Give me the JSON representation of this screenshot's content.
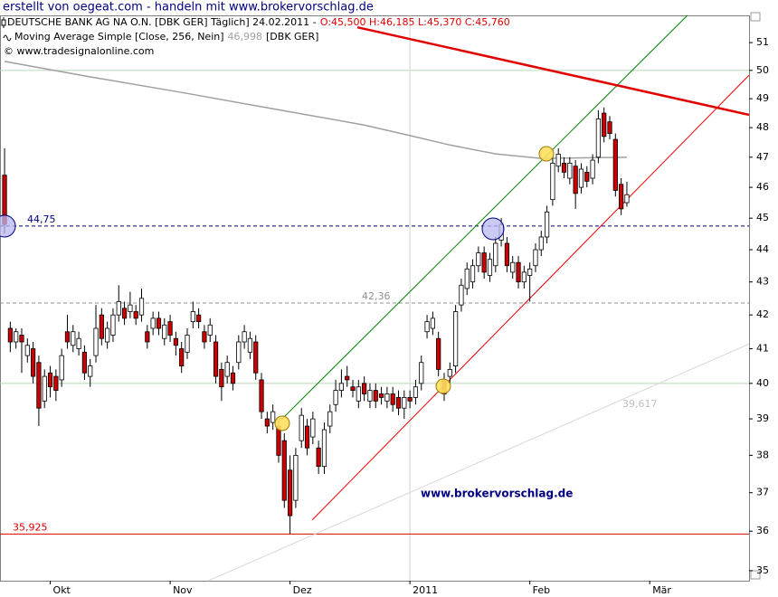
{
  "header": {
    "title": "erstellt von oegeat.com - handeln mit www.brokervorschlag.de"
  },
  "chart_data": {
    "type": "candlestick",
    "legend": {
      "instrument": "DEUTSCHE BANK AG NA O.N. [DBK GER]  Täglich] 24.02.2011 -",
      "ohlc": "O:45,500 H:46,185 L:45,370 C:45,760",
      "ma_name": "Moving Average Simple [Close, 256, Nein]",
      "ma_value": "46,998",
      "ma_suffix": "[DBK GER]",
      "copyright": "© www.tradesignalonline.com"
    },
    "annotations": {
      "watermark": "www.brokervorschlag.de",
      "line_value": "39,617"
    },
    "log_scale": true,
    "up_color": "#ffffff",
    "down_color": "#cc0000",
    "xlim": [
      -0.8,
      130.4
    ],
    "xticks": [
      {
        "value": 8,
        "label": "Okt"
      },
      {
        "value": 29,
        "label": "Nov"
      },
      {
        "value": 50,
        "label": "Dez"
      },
      {
        "value": 71,
        "label": "2011",
        "grid": true
      },
      {
        "value": 92,
        "label": "Feb"
      },
      {
        "value": 113,
        "label": "Mär"
      }
    ],
    "ylim": [
      34.75,
      52
    ],
    "yticks": [
      35,
      36,
      37,
      38,
      39,
      40,
      41,
      42,
      43,
      44,
      45,
      46,
      47,
      48,
      49,
      50,
      51
    ],
    "hgrid": [
      40,
      50
    ],
    "hgrid_color": "#b8d8b8",
    "candles": {
      "open": [
        46.4,
        41.6,
        41.2,
        41.4,
        40.8,
        41.0,
        40.6,
        39.5,
        40.3,
        40.2,
        40.1,
        41.5,
        41.1,
        41.0,
        40.9,
        40.2,
        40.8,
        42.0,
        41.2,
        41.4,
        42.0,
        42.2,
        42.1,
        42.1,
        42.0,
        41.5,
        41.6,
        41.9,
        41.3,
        41.8,
        41.3,
        41.0,
        40.9,
        41.8,
        42.0,
        41.5,
        41.4,
        41.2,
        40.4,
        40.2,
        40.3,
        40.6,
        41.2,
        40.9,
        41.2,
        40.1,
        39.0,
        38.9,
        38.8,
        38.4,
        37.6,
        36.8,
        38.4,
        38.8,
        38.5,
        38.2,
        37.7,
        38.8,
        39.4,
        39.8,
        40.2,
        39.9,
        39.5,
        40.0,
        39.5,
        39.8,
        39.7,
        39.5,
        39.7,
        39.6,
        39.3,
        39.6,
        39.6,
        40.0,
        41.5,
        41.6,
        41.3,
        40.1,
        40.2,
        40.5,
        42.3,
        42.8,
        43.0,
        43.5,
        43.9,
        43.2,
        43.5,
        44.3,
        44.2,
        43.3,
        43.6,
        43.0,
        43.2,
        43.5,
        44.0,
        44.4,
        45.6,
        46.7,
        46.8,
        46.3,
        46.7,
        46.0,
        46.5,
        46.3,
        47.0,
        48.5,
        48.2,
        47.6,
        46.1,
        45.5
      ],
      "high": [
        47.3,
        41.8,
        41.6,
        41.6,
        41.3,
        41.2,
        40.8,
        40.4,
        40.5,
        40.4,
        41.0,
        42.0,
        41.7,
        41.5,
        41.1,
        40.7,
        42.3,
        42.2,
        41.8,
        42.2,
        42.9,
        42.4,
        42.7,
        42.3,
        42.8,
        41.7,
        42.1,
        42.1,
        41.9,
        42.0,
        41.5,
        41.2,
        41.6,
        42.4,
        42.2,
        41.7,
        41.9,
        41.4,
        40.6,
        40.8,
        40.5,
        41.4,
        41.7,
        41.5,
        41.4,
        40.3,
        39.2,
        39.4,
        39.0,
        38.6,
        38.0,
        38.2,
        39.3,
        39.0,
        39.2,
        38.4,
        38.9,
        39.4,
        40.1,
        40.4,
        40.5,
        40.1,
        40.1,
        40.2,
        40.0,
        40.0,
        39.9,
        39.9,
        39.9,
        39.8,
        39.8,
        39.8,
        40.1,
        40.8,
        42.0,
        42.1,
        41.5,
        40.3,
        40.6,
        42.3,
        43.1,
        43.6,
        43.7,
        44.1,
        44.1,
        43.9,
        44.4,
        45.0,
        44.4,
        43.8,
        43.8,
        43.5,
        43.6,
        44.2,
        44.6,
        45.4,
        47.0,
        47.3,
        47.0,
        47.0,
        46.9,
        46.8,
        46.7,
        47.1,
        48.6,
        48.7,
        48.4,
        47.8,
        46.3,
        46.185
      ],
      "low": [
        44.5,
        40.9,
        41.0,
        40.3,
        40.6,
        40.0,
        38.8,
        39.3,
        39.6,
        39.5,
        39.9,
        41.0,
        40.9,
        40.8,
        40.1,
        39.9,
        40.6,
        41.1,
        41.0,
        41.2,
        41.8,
        41.7,
        41.9,
        41.7,
        41.8,
        41.0,
        41.4,
        41.4,
        41.1,
        41.2,
        40.8,
        40.3,
        40.7,
        41.6,
        41.6,
        41.0,
        41.2,
        40.0,
        39.5,
        40.0,
        39.8,
        40.4,
        41.0,
        40.7,
        40.1,
        39.0,
        38.6,
        38.7,
        37.8,
        36.6,
        35.925,
        36.6,
        38.2,
        38.0,
        38.3,
        37.5,
        37.5,
        38.6,
        39.2,
        39.6,
        39.9,
        39.6,
        39.3,
        39.5,
        39.3,
        39.3,
        39.4,
        39.3,
        39.2,
        39.1,
        39.0,
        39.3,
        39.4,
        39.8,
        41.3,
        41.4,
        40.2,
        39.5,
        40.0,
        40.3,
        42.1,
        42.6,
        42.8,
        43.3,
        43.1,
        43.0,
        43.3,
        44.1,
        43.3,
        43.1,
        42.8,
        42.8,
        42.4,
        43.3,
        43.8,
        44.2,
        45.4,
        46.5,
        46.3,
        46.1,
        45.3,
        45.8,
        46.0,
        46.1,
        46.8,
        47.5,
        47.6,
        45.7,
        45.1,
        45.37
      ],
      "close": [
        44.8,
        41.2,
        41.5,
        41.2,
        41.1,
        40.2,
        39.3,
        40.2,
        39.9,
        39.8,
        40.8,
        41.2,
        41.5,
        41.3,
        40.3,
        40.5,
        41.6,
        41.3,
        41.6,
        42.0,
        42.4,
        41.9,
        42.3,
        41.9,
        42.5,
        41.2,
        41.9,
        41.6,
        41.7,
        41.4,
        41.1,
        40.5,
        41.4,
        42.1,
        41.8,
        41.2,
        41.7,
        40.2,
        39.9,
        40.6,
        40.0,
        41.2,
        41.5,
        41.3,
        40.3,
        39.2,
        38.8,
        39.2,
        38.0,
        36.8,
        36.4,
        38.0,
        39.1,
        38.2,
        39.0,
        37.7,
        38.7,
        39.2,
        39.8,
        40.0,
        40.1,
        39.8,
        39.9,
        39.7,
        39.8,
        39.5,
        39.6,
        39.7,
        39.4,
        39.3,
        39.6,
        39.5,
        39.9,
        40.6,
        41.8,
        41.9,
        40.4,
        39.7,
        40.4,
        42.1,
        42.9,
        43.4,
        43.5,
        43.9,
        43.3,
        43.7,
        44.2,
        44.8,
        43.5,
        43.6,
        43.0,
        43.3,
        43.4,
        44.0,
        44.4,
        45.2,
        46.8,
        47.1,
        46.5,
        46.8,
        45.8,
        46.6,
        46.2,
        46.9,
        48.3,
        47.7,
        47.8,
        45.9,
        45.3,
        45.76
      ]
    },
    "moving_average": {
      "color": "#a0a0a0",
      "x": [
        0,
        15,
        31,
        47,
        63,
        71,
        78,
        86,
        94,
        109
      ],
      "values": [
        50.32,
        49.77,
        49.22,
        48.65,
        48.09,
        47.73,
        47.41,
        47.11,
        46.96,
        46.998
      ]
    },
    "levels": [
      {
        "value": 44.75,
        "label": "44,75",
        "color": "#000080",
        "dashed": true
      },
      {
        "value": 42.36,
        "label": "42,36",
        "color": "#909090",
        "dashed": true
      },
      {
        "value": 35.925,
        "label": "35,925",
        "color": "#dd0000",
        "dashed": false
      }
    ],
    "trendlines": [
      {
        "color": "#008000",
        "width": 1,
        "from": [
          48.3,
          38.95
        ],
        "to": [
          119.6,
          52
        ]
      },
      {
        "color": "#ee0000",
        "width": 1,
        "from": [
          53.9,
          36.29
        ],
        "to": [
          130.4,
          49.83
        ]
      },
      {
        "color": "#e00000",
        "width": 2.5,
        "from": [
          61.8,
          51.56
        ],
        "to": [
          130.4,
          48.44
        ]
      },
      {
        "color": "#d8d8d8",
        "width": 1,
        "from": [
          35.7,
          34.75
        ],
        "to": [
          130.4,
          41.14
        ]
      }
    ]
  }
}
